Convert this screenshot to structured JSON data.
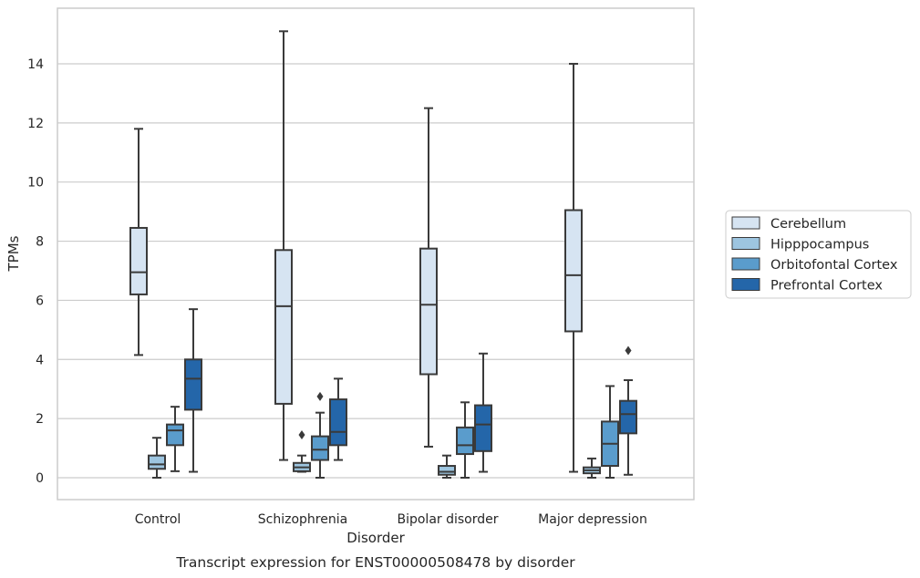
{
  "chart_data": {
    "type": "box",
    "caption": "Transcript expression for ENST00000508478 by disorder",
    "xlabel": "Disorder",
    "ylabel": "TPMs",
    "ylim": [
      -0.7,
      15.9
    ],
    "yticks": [
      0,
      2,
      4,
      6,
      8,
      10,
      12,
      14
    ],
    "grid": true,
    "legend_position": "right",
    "categories": [
      "Control",
      "Schizophrenia",
      "Bipolar disorder",
      "Major depression"
    ],
    "series": [
      {
        "name": "Cerebellum",
        "color": "#d6e4f2",
        "boxes": [
          {
            "whisker_low": 4.15,
            "q1": 6.2,
            "median": 6.95,
            "q3": 8.45,
            "whisker_high": 11.8,
            "outliers": []
          },
          {
            "whisker_low": 0.6,
            "q1": 2.5,
            "median": 5.8,
            "q3": 7.7,
            "whisker_high": 15.1,
            "outliers": []
          },
          {
            "whisker_low": 1.05,
            "q1": 3.5,
            "median": 5.85,
            "q3": 7.75,
            "whisker_high": 12.5,
            "outliers": []
          },
          {
            "whisker_low": 0.2,
            "q1": 4.95,
            "median": 6.85,
            "q3": 9.05,
            "whisker_high": 14.0,
            "outliers": []
          }
        ]
      },
      {
        "name": "Hipppocampus",
        "color": "#9dc5e0",
        "boxes": [
          {
            "whisker_low": 0.0,
            "q1": 0.3,
            "median": 0.45,
            "q3": 0.75,
            "whisker_high": 1.35,
            "outliers": []
          },
          {
            "whisker_low": 0.2,
            "q1": 0.22,
            "median": 0.35,
            "q3": 0.5,
            "whisker_high": 0.75,
            "outliers": [
              1.45
            ]
          },
          {
            "whisker_low": 0.0,
            "q1": 0.1,
            "median": 0.2,
            "q3": 0.4,
            "whisker_high": 0.75,
            "outliers": []
          },
          {
            "whisker_low": 0.0,
            "q1": 0.15,
            "median": 0.25,
            "q3": 0.35,
            "whisker_high": 0.65,
            "outliers": []
          }
        ]
      },
      {
        "name": "Orbitofontal Cortex",
        "color": "#5a9ccc",
        "boxes": [
          {
            "whisker_low": 0.22,
            "q1": 1.1,
            "median": 1.6,
            "q3": 1.8,
            "whisker_high": 2.4,
            "outliers": []
          },
          {
            "whisker_low": 0.0,
            "q1": 0.6,
            "median": 0.95,
            "q3": 1.4,
            "whisker_high": 2.2,
            "outliers": [
              2.75
            ]
          },
          {
            "whisker_low": 0.0,
            "q1": 0.8,
            "median": 1.1,
            "q3": 1.7,
            "whisker_high": 2.55,
            "outliers": []
          },
          {
            "whisker_low": 0.0,
            "q1": 0.4,
            "median": 1.15,
            "q3": 1.9,
            "whisker_high": 3.1,
            "outliers": []
          }
        ]
      },
      {
        "name": "Prefrontal Cortex",
        "color": "#2466a9",
        "boxes": [
          {
            "whisker_low": 0.2,
            "q1": 2.3,
            "median": 3.35,
            "q3": 4.0,
            "whisker_high": 5.7,
            "outliers": []
          },
          {
            "whisker_low": 0.6,
            "q1": 1.1,
            "median": 1.55,
            "q3": 2.65,
            "whisker_high": 3.35,
            "outliers": []
          },
          {
            "whisker_low": 0.2,
            "q1": 0.9,
            "median": 1.8,
            "q3": 2.45,
            "whisker_high": 4.2,
            "outliers": []
          },
          {
            "whisker_low": 0.1,
            "q1": 1.5,
            "median": 2.15,
            "q3": 2.6,
            "whisker_high": 3.3,
            "outliers": [
              4.3
            ]
          }
        ]
      }
    ]
  }
}
